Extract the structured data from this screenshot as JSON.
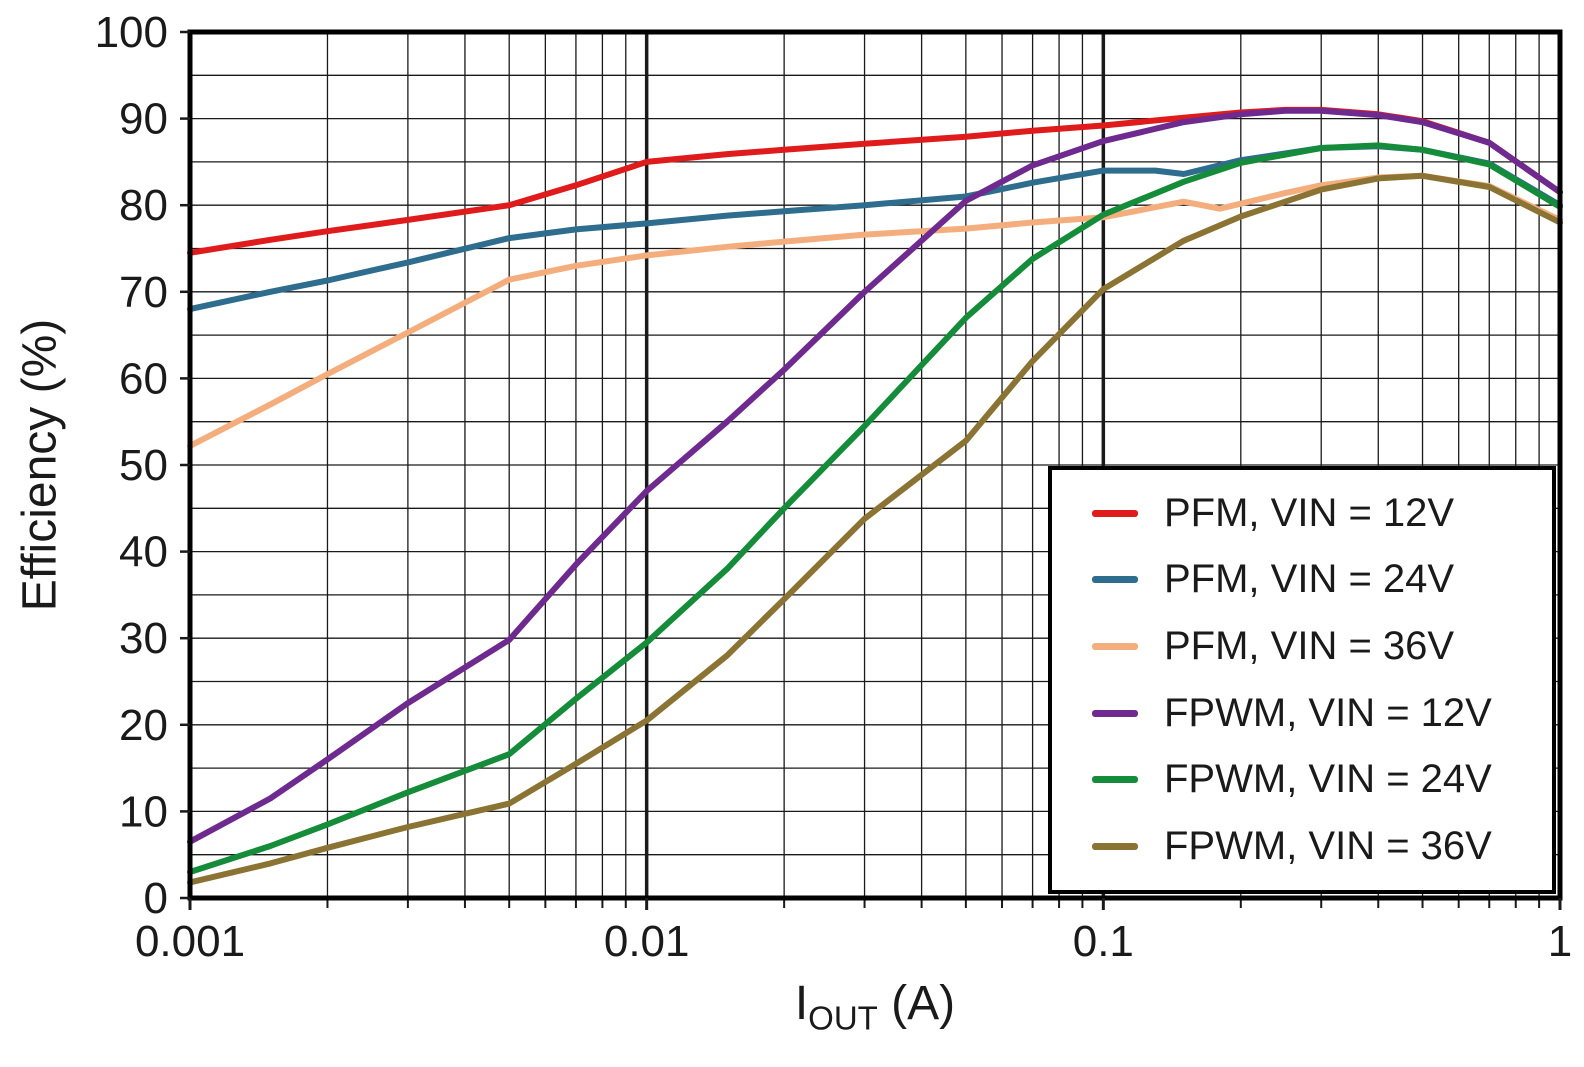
{
  "figure": {
    "ylabel": "Efficiency (%)",
    "xlabel_main": "I",
    "xlabel_sub": "OUT",
    "xlabel_unit": " (A)",
    "background": "#ffffff",
    "grid_color": "#1a1a1a",
    "frame_color": "#000000",
    "text_color": "#1a1a1a"
  },
  "chart_data": {
    "type": "line",
    "title": "",
    "xlabel": "IOUT (A)",
    "ylabel": "Efficiency (%)",
    "x_scale": "log",
    "xlim": [
      0.001,
      1
    ],
    "ylim": [
      0,
      100
    ],
    "grid": {
      "y_minor_step": 5,
      "y_major_step": 10,
      "x_minor": "log-multiples-2-9",
      "x_major": "decades"
    },
    "legend_position": "lower right",
    "x_ticks": [
      {
        "value": 0.001,
        "label": "0.001"
      },
      {
        "value": 0.01,
        "label": "0.01"
      },
      {
        "value": 0.1,
        "label": "0.1"
      },
      {
        "value": 1,
        "label": "1"
      }
    ],
    "y_ticks": [
      {
        "value": 0,
        "label": "0"
      },
      {
        "value": 10,
        "label": "10"
      },
      {
        "value": 20,
        "label": "20"
      },
      {
        "value": 30,
        "label": "30"
      },
      {
        "value": 40,
        "label": "40"
      },
      {
        "value": 50,
        "label": "50"
      },
      {
        "value": 60,
        "label": "60"
      },
      {
        "value": 70,
        "label": "70"
      },
      {
        "value": 80,
        "label": "80"
      },
      {
        "value": 90,
        "label": "90"
      },
      {
        "value": 100,
        "label": "100"
      }
    ],
    "series": [
      {
        "name": "PFM, VIN = 12V",
        "color": "#e01b1b",
        "points": [
          [
            0.001,
            74.5
          ],
          [
            0.0015,
            76
          ],
          [
            0.002,
            77
          ],
          [
            0.003,
            78.3
          ],
          [
            0.005,
            80
          ],
          [
            0.007,
            82.3
          ],
          [
            0.01,
            85
          ],
          [
            0.015,
            85.9
          ],
          [
            0.02,
            86.4
          ],
          [
            0.03,
            87.1
          ],
          [
            0.05,
            87.9
          ],
          [
            0.07,
            88.6
          ],
          [
            0.1,
            89.2
          ],
          [
            0.15,
            90.1
          ],
          [
            0.2,
            90.7
          ],
          [
            0.25,
            91
          ],
          [
            0.3,
            91
          ],
          [
            0.4,
            90.5
          ],
          [
            0.5,
            89.7
          ],
          [
            0.7,
            87.2
          ],
          [
            1,
            81.5
          ]
        ]
      },
      {
        "name": "PFM, VIN = 24V",
        "color": "#2e6d8d",
        "points": [
          [
            0.001,
            68
          ],
          [
            0.0015,
            70
          ],
          [
            0.002,
            71.3
          ],
          [
            0.003,
            73.4
          ],
          [
            0.005,
            76.2
          ],
          [
            0.007,
            77.2
          ],
          [
            0.01,
            77.9
          ],
          [
            0.015,
            78.8
          ],
          [
            0.02,
            79.3
          ],
          [
            0.03,
            80
          ],
          [
            0.05,
            81
          ],
          [
            0.07,
            82.6
          ],
          [
            0.1,
            84
          ],
          [
            0.13,
            84
          ],
          [
            0.15,
            83.6
          ],
          [
            0.2,
            85.2
          ],
          [
            0.3,
            86.6
          ],
          [
            0.4,
            86.8
          ],
          [
            0.5,
            86.4
          ],
          [
            0.7,
            84.8
          ],
          [
            1,
            80
          ]
        ]
      },
      {
        "name": "PFM, VIN = 36V",
        "color": "#f4ae7d",
        "points": [
          [
            0.001,
            52.2
          ],
          [
            0.0015,
            57
          ],
          [
            0.002,
            60.5
          ],
          [
            0.003,
            65.3
          ],
          [
            0.005,
            71.4
          ],
          [
            0.007,
            73
          ],
          [
            0.01,
            74.2
          ],
          [
            0.015,
            75.2
          ],
          [
            0.02,
            75.8
          ],
          [
            0.03,
            76.6
          ],
          [
            0.05,
            77.3
          ],
          [
            0.07,
            78
          ],
          [
            0.1,
            78.6
          ],
          [
            0.15,
            80.4
          ],
          [
            0.18,
            79.6
          ],
          [
            0.25,
            81.4
          ],
          [
            0.3,
            82.3
          ],
          [
            0.4,
            83.2
          ],
          [
            0.5,
            83.4
          ],
          [
            0.7,
            82.2
          ],
          [
            1,
            78.3
          ]
        ]
      },
      {
        "name": "FPWM, VIN = 12V",
        "color": "#6e2a8e",
        "points": [
          [
            0.001,
            6.5
          ],
          [
            0.0015,
            11.5
          ],
          [
            0.002,
            16
          ],
          [
            0.003,
            22.5
          ],
          [
            0.005,
            29.8
          ],
          [
            0.007,
            38.5
          ],
          [
            0.01,
            47
          ],
          [
            0.015,
            55
          ],
          [
            0.02,
            61
          ],
          [
            0.03,
            70
          ],
          [
            0.05,
            80.5
          ],
          [
            0.07,
            84.6
          ],
          [
            0.1,
            87.4
          ],
          [
            0.15,
            89.6
          ],
          [
            0.2,
            90.5
          ],
          [
            0.25,
            90.9
          ],
          [
            0.3,
            90.9
          ],
          [
            0.4,
            90.4
          ],
          [
            0.5,
            89.6
          ],
          [
            0.7,
            87.2
          ],
          [
            1,
            81.5
          ]
        ]
      },
      {
        "name": "FPWM, VIN = 24V",
        "color": "#158c3a",
        "points": [
          [
            0.001,
            3
          ],
          [
            0.0015,
            6
          ],
          [
            0.002,
            8.5
          ],
          [
            0.003,
            12.2
          ],
          [
            0.005,
            16.6
          ],
          [
            0.007,
            23
          ],
          [
            0.01,
            29.5
          ],
          [
            0.015,
            38
          ],
          [
            0.02,
            45
          ],
          [
            0.03,
            54.5
          ],
          [
            0.05,
            67
          ],
          [
            0.07,
            73.8
          ],
          [
            0.1,
            78.9
          ],
          [
            0.15,
            82.7
          ],
          [
            0.2,
            84.9
          ],
          [
            0.3,
            86.6
          ],
          [
            0.4,
            86.9
          ],
          [
            0.5,
            86.4
          ],
          [
            0.7,
            84.7
          ],
          [
            1,
            79.8
          ]
        ]
      },
      {
        "name": "FPWM, VIN = 36V",
        "color": "#8b7334",
        "points": [
          [
            0.001,
            1.8
          ],
          [
            0.0015,
            4
          ],
          [
            0.002,
            5.8
          ],
          [
            0.003,
            8.2
          ],
          [
            0.005,
            10.9
          ],
          [
            0.007,
            15.5
          ],
          [
            0.01,
            20.5
          ],
          [
            0.015,
            28
          ],
          [
            0.02,
            34.5
          ],
          [
            0.03,
            43.8
          ],
          [
            0.05,
            52.8
          ],
          [
            0.07,
            62
          ],
          [
            0.1,
            70.3
          ],
          [
            0.15,
            75.9
          ],
          [
            0.2,
            78.7
          ],
          [
            0.3,
            81.8
          ],
          [
            0.4,
            83.1
          ],
          [
            0.5,
            83.4
          ],
          [
            0.7,
            82.1
          ],
          [
            1,
            78
          ]
        ]
      }
    ]
  }
}
